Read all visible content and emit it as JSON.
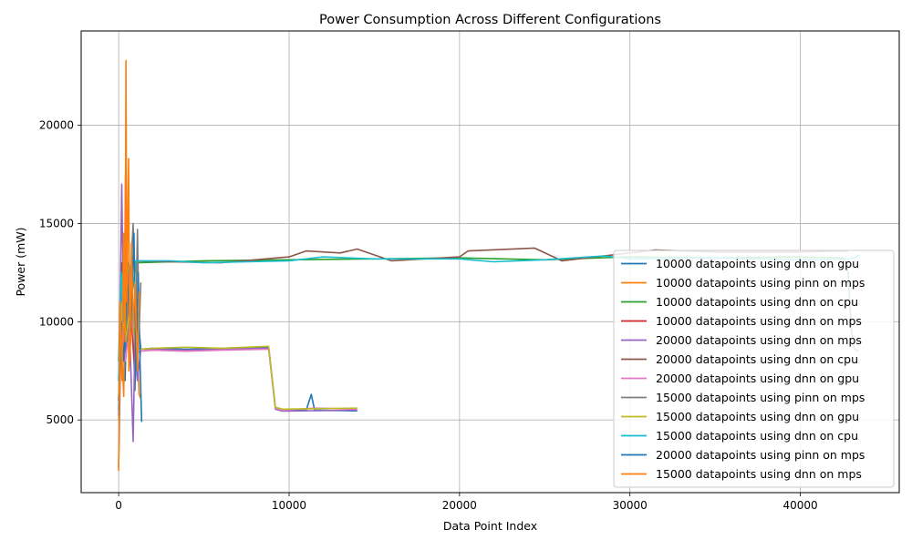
{
  "chart_data": {
    "type": "line",
    "title": "Power Consumption Across Different Configurations",
    "xlabel": "Data Point Index",
    "ylabel": "Power (mW)",
    "xlim": [
      -2200,
      45800
    ],
    "ylim": [
      1300,
      24800
    ],
    "xticks": [
      0,
      10000,
      20000,
      30000,
      40000
    ],
    "yticks": [
      5000,
      10000,
      15000,
      20000
    ],
    "grid": true,
    "legend_position": "lower-right",
    "series": [
      {
        "name": "10000 datapoints using dnn on gpu",
        "color": "#1f77b4",
        "points": [
          [
            0,
            2600
          ],
          [
            120,
            9000
          ],
          [
            250,
            13500
          ],
          [
            380,
            7000
          ],
          [
            500,
            12000
          ],
          [
            650,
            8200
          ],
          [
            800,
            11000
          ],
          [
            950,
            6500
          ],
          [
            1100,
            10500
          ],
          [
            1300,
            8600
          ],
          [
            2000,
            8650
          ],
          [
            4000,
            8600
          ],
          [
            6000,
            8650
          ],
          [
            8800,
            8700
          ],
          [
            9200,
            5600
          ],
          [
            9600,
            5500
          ],
          [
            11000,
            5480
          ],
          [
            11300,
            6300
          ],
          [
            11500,
            5500
          ],
          [
            14000,
            5460
          ]
        ]
      },
      {
        "name": "10000 datapoints using pinn on mps",
        "color": "#ff7f0e",
        "points": [
          [
            0,
            5000
          ],
          [
            150,
            9000
          ],
          [
            300,
            6200
          ],
          [
            400,
            17500
          ],
          [
            450,
            9000
          ],
          [
            500,
            14000
          ],
          [
            600,
            7500
          ],
          [
            750,
            10000
          ],
          [
            900,
            8000
          ],
          [
            1050,
            9500
          ],
          [
            1200,
            6300
          ],
          [
            1300,
            6100
          ]
        ]
      },
      {
        "name": "10000 datapoints using dnn on cpu",
        "color": "#2ca02c",
        "points": [
          [
            0,
            8000
          ],
          [
            150,
            12000
          ],
          [
            300,
            11000
          ],
          [
            600,
            13000
          ],
          [
            900,
            11800
          ],
          [
            1000,
            13000
          ],
          [
            5000,
            13100
          ],
          [
            10000,
            13150
          ],
          [
            15000,
            13200
          ],
          [
            20000,
            13250
          ],
          [
            25000,
            13150
          ],
          [
            30000,
            13300
          ],
          [
            35000,
            13250
          ],
          [
            40000,
            13300
          ],
          [
            42500,
            13250
          ],
          [
            42800,
            12500
          ],
          [
            43000,
            9500
          ],
          [
            43200,
            8600
          ],
          [
            43400,
            8500
          ]
        ]
      },
      {
        "name": "10000 datapoints using dnn on mps",
        "color": "#d62728",
        "points": [
          [
            0,
            6000
          ],
          [
            200,
            12500
          ],
          [
            400,
            9000
          ],
          [
            700,
            11500
          ],
          [
            900,
            8000
          ],
          [
            1000,
            9500
          ]
        ]
      },
      {
        "name": "20000 datapoints using dnn on mps",
        "color": "#9467bd",
        "points": [
          [
            0,
            5200
          ],
          [
            100,
            12000
          ],
          [
            180,
            17000
          ],
          [
            300,
            9000
          ],
          [
            500,
            13500
          ],
          [
            700,
            8000
          ],
          [
            850,
            3900
          ],
          [
            950,
            9000
          ],
          [
            1100,
            7000
          ],
          [
            1300,
            8600
          ],
          [
            2000,
            8600
          ],
          [
            4000,
            8550
          ],
          [
            6000,
            8600
          ],
          [
            8800,
            8650
          ],
          [
            9200,
            5550
          ],
          [
            9600,
            5450
          ],
          [
            14000,
            5500
          ]
        ]
      },
      {
        "name": "20000 datapoints using dnn on cpu",
        "color": "#8c564b",
        "points": [
          [
            0,
            7000
          ],
          [
            200,
            13000
          ],
          [
            600,
            12600
          ],
          [
            1000,
            13100
          ],
          [
            3000,
            13050
          ],
          [
            6000,
            13000
          ],
          [
            10000,
            13300
          ],
          [
            11000,
            13600
          ],
          [
            13000,
            13500
          ],
          [
            14000,
            13700
          ],
          [
            16000,
            13100
          ],
          [
            20000,
            13300
          ],
          [
            20500,
            13600
          ],
          [
            24400,
            13750
          ],
          [
            26000,
            13100
          ],
          [
            30000,
            13500
          ],
          [
            31500,
            13650
          ],
          [
            35000,
            13550
          ],
          [
            40000,
            13550
          ],
          [
            42800,
            13600
          ]
        ]
      },
      {
        "name": "20000 datapoints using dnn on gpu",
        "color": "#e377c2",
        "points": [
          [
            0,
            6500
          ],
          [
            200,
            10000
          ],
          [
            400,
            8000
          ],
          [
            700,
            10500
          ],
          [
            1000,
            8400
          ],
          [
            1300,
            8500
          ],
          [
            2000,
            8550
          ],
          [
            4000,
            8500
          ],
          [
            6000,
            8550
          ],
          [
            8800,
            8600
          ],
          [
            9200,
            5600
          ],
          [
            9600,
            5500
          ],
          [
            11500,
            5600
          ],
          [
            14000,
            5550
          ]
        ]
      },
      {
        "name": "15000 datapoints using pinn on mps",
        "color": "#7f7f7f",
        "points": [
          [
            0,
            6000
          ],
          [
            150,
            11000
          ],
          [
            350,
            14500
          ],
          [
            500,
            9000
          ],
          [
            700,
            12500
          ],
          [
            850,
            15000
          ],
          [
            1000,
            10000
          ],
          [
            1100,
            14700
          ],
          [
            1200,
            9500
          ],
          [
            1300,
            12000
          ]
        ]
      },
      {
        "name": "15000 datapoints using dnn on gpu",
        "color": "#bcbd22",
        "points": [
          [
            0,
            6200
          ],
          [
            200,
            11000
          ],
          [
            400,
            9000
          ],
          [
            700,
            11000
          ],
          [
            1000,
            8700
          ],
          [
            1300,
            8600
          ],
          [
            2000,
            8650
          ],
          [
            4000,
            8700
          ],
          [
            6000,
            8650
          ],
          [
            8800,
            8750
          ],
          [
            9200,
            5650
          ],
          [
            9600,
            5550
          ],
          [
            14000,
            5600
          ]
        ]
      },
      {
        "name": "15000 datapoints using dnn on cpu",
        "color": "#17becf",
        "points": [
          [
            0,
            7000
          ],
          [
            150,
            12500
          ],
          [
            300,
            10000
          ],
          [
            500,
            13000
          ],
          [
            800,
            11500
          ],
          [
            1000,
            13100
          ],
          [
            3000,
            13100
          ],
          [
            5000,
            13000
          ],
          [
            10000,
            13100
          ],
          [
            12000,
            13300
          ],
          [
            15000,
            13200
          ],
          [
            20000,
            13200
          ],
          [
            22000,
            13050
          ],
          [
            25000,
            13150
          ],
          [
            28500,
            13350
          ],
          [
            30000,
            13200
          ],
          [
            35000,
            13250
          ],
          [
            40000,
            13150
          ],
          [
            43000,
            13200
          ],
          [
            43500,
            13400
          ]
        ]
      },
      {
        "name": "20000 datapoints using pinn on mps",
        "color": "#1f77b4",
        "points": [
          [
            0,
            5500
          ],
          [
            150,
            10000
          ],
          [
            300,
            8000
          ],
          [
            500,
            12000
          ],
          [
            700,
            9500
          ],
          [
            900,
            14500
          ],
          [
            1000,
            7500
          ],
          [
            1150,
            12500
          ],
          [
            1250,
            8000
          ],
          [
            1350,
            4900
          ]
        ]
      },
      {
        "name": "15000 datapoints using dnn on mps",
        "color": "#ff7f0e",
        "points": [
          [
            0,
            2400
          ],
          [
            80,
            11000
          ],
          [
            200,
            7000
          ],
          [
            300,
            14500
          ],
          [
            380,
            9000
          ],
          [
            430,
            23300
          ],
          [
            480,
            11000
          ],
          [
            580,
            18300
          ],
          [
            650,
            8000
          ],
          [
            750,
            14000
          ],
          [
            850,
            9500
          ],
          [
            950,
            12000
          ],
          [
            1100,
            7500
          ],
          [
            1200,
            11500
          ]
        ]
      }
    ]
  }
}
